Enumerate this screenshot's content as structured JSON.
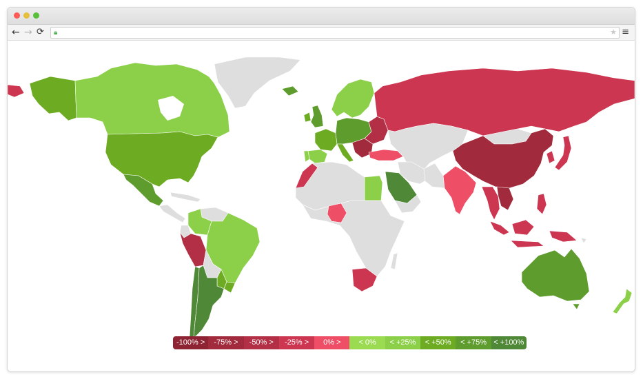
{
  "window": {
    "controls": [
      "close",
      "minimize",
      "zoom"
    ],
    "icons": {
      "back": "arrow-left-icon",
      "forward": "arrow-right-icon",
      "reload": "reload-icon",
      "lock": "lock-icon",
      "bookmark": "star-icon",
      "menu": "hamburger-menu-icon"
    },
    "address_bar": {
      "value": ""
    }
  },
  "map": {
    "background_color": "#ffffff",
    "no_data_color": "#dedede",
    "regions": [
      {
        "name": "Alaska",
        "category": "<+50%"
      },
      {
        "name": "Canada",
        "category": "<+25%"
      },
      {
        "name": "United States",
        "category": "<+50%"
      },
      {
        "name": "Mexico",
        "category": "<+75%"
      },
      {
        "name": "Greenland",
        "category": "no-data"
      },
      {
        "name": "Colombia",
        "category": "<+25%"
      },
      {
        "name": "Brazil",
        "category": "<+25%"
      },
      {
        "name": "Peru",
        "category": "-50%>"
      },
      {
        "name": "Chile",
        "category": "<+100%"
      },
      {
        "name": "Argentina",
        "category": "<+100%"
      },
      {
        "name": "Paraguay",
        "category": "<+50%"
      },
      {
        "name": "Uruguay",
        "category": "<+50%"
      },
      {
        "name": "Iceland",
        "category": "<+75%"
      },
      {
        "name": "United Kingdom",
        "category": "<+75%"
      },
      {
        "name": "Ireland",
        "category": "<+50%"
      },
      {
        "name": "Spain",
        "category": "<+25%"
      },
      {
        "name": "Portugal",
        "category": "<+25%"
      },
      {
        "name": "France",
        "category": "<+50%"
      },
      {
        "name": "Scandinavia",
        "category": "<+25%"
      },
      {
        "name": "Central Europe",
        "category": "<+75%"
      },
      {
        "name": "Eastern Europe",
        "category": "-50%>"
      },
      {
        "name": "Turkey",
        "category": "0%>"
      },
      {
        "name": "Russia",
        "category": "-25%>"
      },
      {
        "name": "Morocco",
        "category": "-25%>"
      },
      {
        "name": "Egypt",
        "category": "<+25%"
      },
      {
        "name": "Saudi Arabia",
        "category": "<+100%"
      },
      {
        "name": "Nigeria",
        "category": "0%>"
      },
      {
        "name": "South Africa",
        "category": "-25%>"
      },
      {
        "name": "India",
        "category": "0%>"
      },
      {
        "name": "China",
        "category": "-50%>"
      },
      {
        "name": "Japan",
        "category": "-25%>"
      },
      {
        "name": "South Korea",
        "category": "-25%>"
      },
      {
        "name": "Southeast Asia",
        "category": "-25%>"
      },
      {
        "name": "Vietnam",
        "category": "-75%>"
      },
      {
        "name": "Indonesia",
        "category": "-25%>"
      },
      {
        "name": "Philippines",
        "category": "-25%>"
      },
      {
        "name": "Papua New Guinea",
        "category": "-25%>"
      },
      {
        "name": "Australia",
        "category": "<+75%"
      },
      {
        "name": "New Zealand",
        "category": "<+25%"
      }
    ]
  },
  "legend": {
    "items": [
      {
        "label": "-100% >",
        "color": "#8e2433"
      },
      {
        "label": "-75% >",
        "color": "#a12a3c"
      },
      {
        "label": "-50% >",
        "color": "#b22f45"
      },
      {
        "label": "-25% >",
        "color": "#cc3650"
      },
      {
        "label": "0% >",
        "color": "#ef4f66"
      },
      {
        "label": "< 0%",
        "color": "#9bdb52"
      },
      {
        "label": "< +25%",
        "color": "#8cd04a"
      },
      {
        "label": "< +50%",
        "color": "#6dac22"
      },
      {
        "label": "< +75%",
        "color": "#5e9c2e"
      },
      {
        "label": "< +100%",
        "color": "#4f8836"
      }
    ]
  }
}
